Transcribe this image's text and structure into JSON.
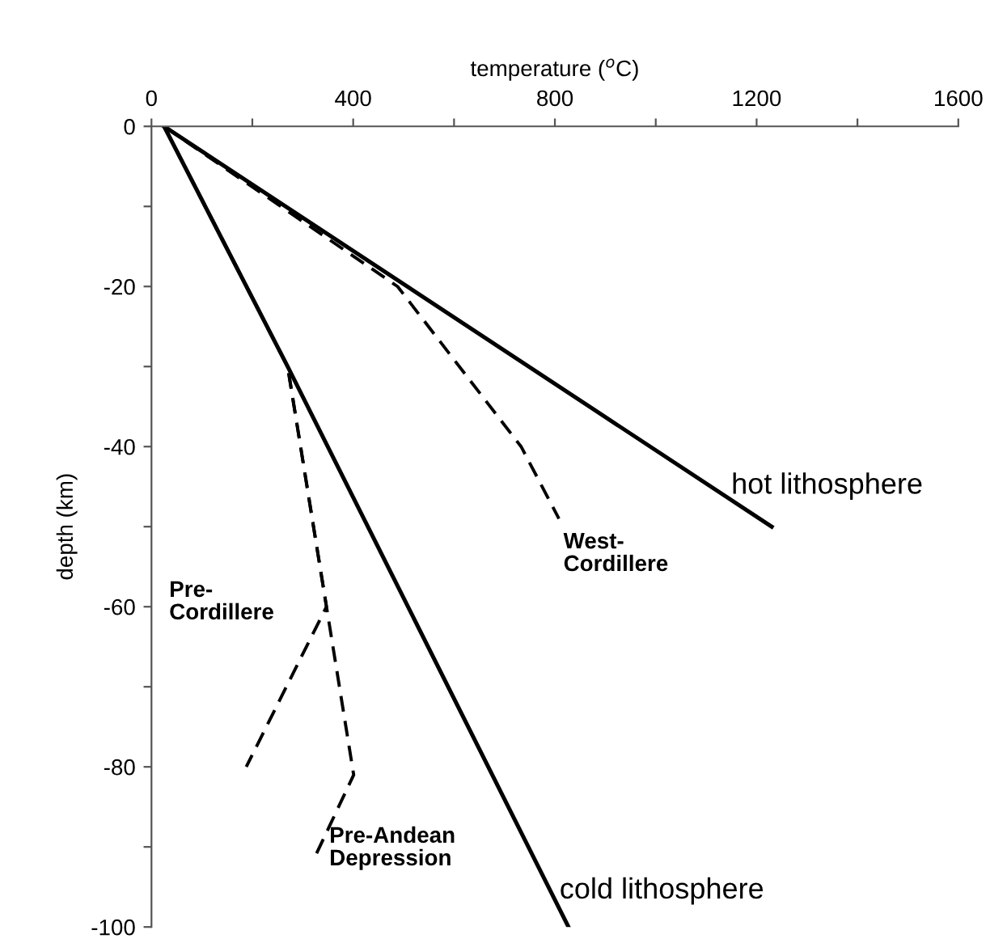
{
  "chart_data": {
    "type": "line",
    "xlabel": "temperature ($^{o}$C)",
    "ylabel": "depth (km)",
    "xlim": [
      0,
      1600
    ],
    "ylim": [
      -100,
      0
    ],
    "xticks": [
      0,
      {
        "value": 200,
        "label": null
      },
      400,
      {
        "value": 600,
        "label": null
      },
      800,
      {
        "value": 1000,
        "label": null
      },
      1200,
      {
        "value": 1400,
        "label": null
      },
      1600
    ],
    "yticks": [
      0,
      {
        "value": -10,
        "label": null
      },
      -20,
      {
        "value": -30,
        "label": null
      },
      -40,
      {
        "value": -50,
        "label": null
      },
      -60,
      {
        "value": -70,
        "label": null
      },
      -80,
      {
        "value": -90,
        "label": null
      },
      -100
    ],
    "grid": false,
    "legend": false,
    "marker": "none",
    "series": [
      {
        "name": "hot lithosphere",
        "color": "#000000",
        "line_style": "solid",
        "x": [
          25,
          1230
        ],
        "values": [
          0,
          -50
        ]
      },
      {
        "name": "cold lithosphere",
        "color": "#000000",
        "line_style": "solid",
        "x": [
          25,
          270,
          827
        ],
        "values": [
          0,
          -30,
          -100
        ]
      },
      {
        "name": "West-\nCordillere",
        "color": "#000000",
        "line_style": "dashed",
        "x": [
          25,
          488,
          733,
          808
        ],
        "values": [
          0,
          -20,
          -40,
          -49
        ]
      },
      {
        "name": "Pre-\nCordillere",
        "color": "#000000",
        "line_style": "dashed",
        "x": [
          25,
          270,
          347,
          188
        ],
        "values": [
          0,
          -30,
          -60,
          -80
        ]
      },
      {
        "name": "Pre-Andean\nDepression",
        "color": "#000000",
        "line_style": "dashed",
        "x": [
          25,
          270,
          401,
          326
        ],
        "values": [
          0,
          -30,
          -81,
          -91
        ]
      }
    ]
  }
}
